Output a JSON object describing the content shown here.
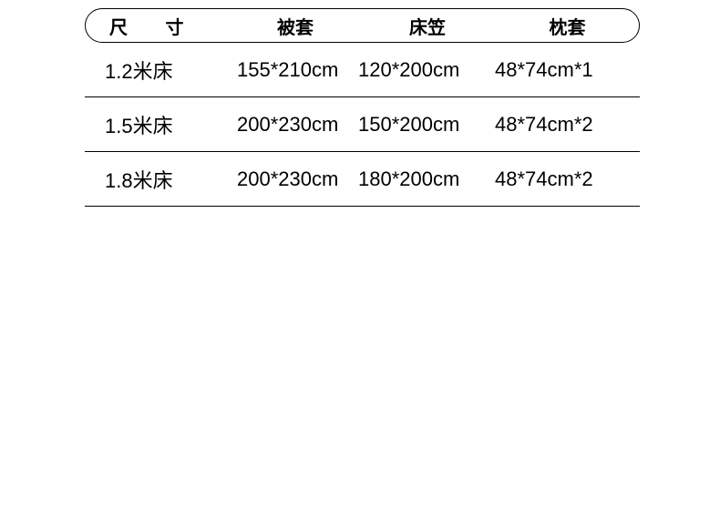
{
  "table": {
    "headers": {
      "size": "尺 寸",
      "duvet": "被套",
      "sheet": "床笠",
      "pillow": "枕套"
    },
    "rows": [
      {
        "size": "1.2米床",
        "duvet": "155*210cm",
        "sheet": "120*200cm",
        "pillow": "48*74cm*1"
      },
      {
        "size": "1.5米床",
        "duvet": "200*230cm",
        "sheet": "150*200cm",
        "pillow": "48*74cm*2"
      },
      {
        "size": "1.8米床",
        "duvet": "200*230cm",
        "sheet": "180*200cm",
        "pillow": "48*74cm*2"
      }
    ],
    "colors": {
      "background": "#ffffff",
      "text": "#000000",
      "border": "#000000"
    },
    "fonts": {
      "header_size": 20,
      "body_size": 22,
      "header_weight": "bold"
    }
  }
}
